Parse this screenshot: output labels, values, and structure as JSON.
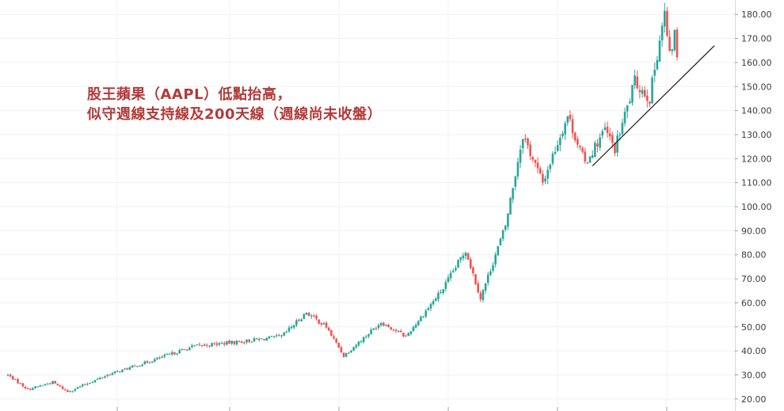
{
  "chart_data": {
    "type": "candlestick",
    "title": "",
    "annotation": {
      "line1": "股王蘋果（AAPL）低點抬高，",
      "line2": "似守週線支持線及200天線（週線尚未收盤）"
    },
    "y_axis": {
      "position": "right",
      "ylim": [
        15,
        186
      ],
      "ticks": [
        20,
        30,
        40,
        50,
        60,
        70,
        80,
        90,
        100,
        110,
        120,
        130,
        140,
        150,
        160,
        170,
        180
      ],
      "tick_labels": [
        "20.00",
        "30.00",
        "40.00",
        "50.00",
        "60.00",
        "70.00",
        "80.00",
        "90.00",
        "100.00",
        "110.00",
        "120.00",
        "130.00",
        "140.00",
        "150.00",
        "160.00",
        "170.00",
        "180.00"
      ]
    },
    "x_axis": {
      "labels_visible": false,
      "candles_visible": 270
    },
    "grid": true,
    "colors": {
      "up": "#26a69a",
      "down": "#ef5350",
      "grid": "#eef0f3",
      "trendline": "#1a1a1a",
      "annotation": "#b23b3b"
    },
    "price_path_keypoints": [
      {
        "i": 0,
        "close": 30
      },
      {
        "i": 8,
        "close": 24
      },
      {
        "i": 18,
        "close": 27
      },
      {
        "i": 24,
        "close": 23
      },
      {
        "i": 40,
        "close": 30
      },
      {
        "i": 55,
        "close": 35
      },
      {
        "i": 75,
        "close": 42
      },
      {
        "i": 95,
        "close": 44
      },
      {
        "i": 110,
        "close": 46
      },
      {
        "i": 120,
        "close": 56
      },
      {
        "i": 128,
        "close": 50
      },
      {
        "i": 135,
        "close": 38
      },
      {
        "i": 150,
        "close": 52
      },
      {
        "i": 160,
        "close": 46
      },
      {
        "i": 175,
        "close": 66
      },
      {
        "i": 184,
        "close": 82
      },
      {
        "i": 190,
        "close": 62
      },
      {
        "i": 200,
        "close": 92
      },
      {
        "i": 207,
        "close": 130
      },
      {
        "i": 215,
        "close": 110
      },
      {
        "i": 225,
        "close": 138
      },
      {
        "i": 232,
        "close": 118
      },
      {
        "i": 240,
        "close": 132
      },
      {
        "i": 244,
        "close": 124
      },
      {
        "i": 252,
        "close": 152
      },
      {
        "i": 258,
        "close": 145
      },
      {
        "i": 262,
        "close": 170
      },
      {
        "i": 264,
        "close": 180
      },
      {
        "i": 266,
        "close": 162
      },
      {
        "i": 268,
        "close": 172
      },
      {
        "i": 270,
        "close": 153
      }
    ],
    "trendline": {
      "from": {
        "i": 235,
        "price": 117
      },
      "to": {
        "i": 284,
        "price": 167
      }
    }
  }
}
